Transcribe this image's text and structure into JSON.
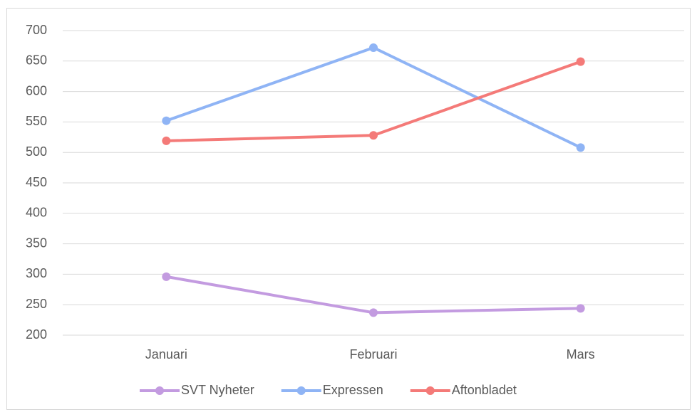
{
  "chart_data": {
    "type": "line",
    "categories": [
      "Januari",
      "Februari",
      "Mars"
    ],
    "series": [
      {
        "name": "SVT Nyheter",
        "color": "#c39be0",
        "values": [
          296,
          237,
          244
        ]
      },
      {
        "name": "Expressen",
        "color": "#8fb4f5",
        "values": [
          552,
          672,
          508
        ]
      },
      {
        "name": "Aftonbladet",
        "color": "#f47a78",
        "values": [
          519,
          528,
          649
        ]
      }
    ],
    "ylim": [
      200,
      700
    ],
    "yticks": [
      200,
      250,
      300,
      350,
      400,
      450,
      500,
      550,
      600,
      650,
      700
    ],
    "grid": true,
    "legend": "bottom"
  }
}
